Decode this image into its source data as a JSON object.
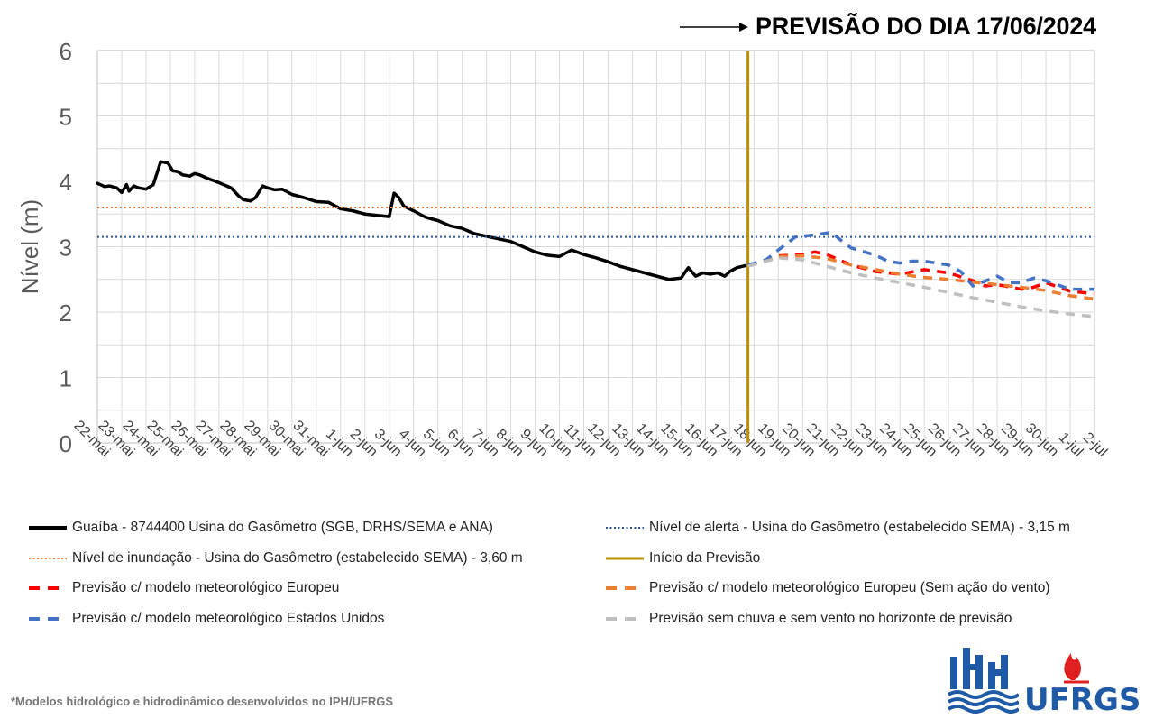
{
  "title": "PREVISÃO DO DIA 17/06/2024",
  "chart_data": {
    "type": "line",
    "ylabel": "Nível (m)",
    "xlabel": "",
    "ylim": [
      0,
      6
    ],
    "yticks": [
      0,
      1,
      2,
      3,
      4,
      5,
      6
    ],
    "grid": true,
    "categories": [
      "22-mai",
      "23-mai",
      "24-mai",
      "25-mai",
      "26-mai",
      "27-mai",
      "28-mai",
      "29-mai",
      "30-mai",
      "31-mai",
      "1-jun",
      "2-jun",
      "3-jun",
      "4-jun",
      "5-jun",
      "6-jun",
      "7-jun",
      "8-jun",
      "9-jun",
      "10-jun",
      "11-jun",
      "12-jun",
      "13-jun",
      "14-jun",
      "15-jun",
      "16-jun",
      "17-jun",
      "18-jun",
      "19-jun",
      "20-jun",
      "21-jun",
      "22-jun",
      "23-jun",
      "24-jun",
      "25-jun",
      "26-jun",
      "27-jun",
      "28-jun",
      "29-jun",
      "30-jun",
      "1-jul",
      "2-jul"
    ],
    "forecast_start": 26.75,
    "series": [
      {
        "name": "Guaíba - 8744400 Usina do Gasômetro (SGB, DRHS/SEMA e ANA)",
        "color": "#000000",
        "style": "solid",
        "x": [
          0,
          0.3,
          0.5,
          0.8,
          1.0,
          1.2,
          1.3,
          1.5,
          1.7,
          2.0,
          2.3,
          2.6,
          2.9,
          3.0,
          3.1,
          3.3,
          3.5,
          3.8,
          4.0,
          4.2,
          4.5,
          5.0,
          5.5,
          5.8,
          6.0,
          6.3,
          6.5,
          6.8,
          7.0,
          7.3,
          7.6,
          8.0,
          8.5,
          9.0,
          9.5,
          10.0,
          10.5,
          11.0,
          11.5,
          12.0,
          12.2,
          12.4,
          12.6,
          13.0,
          13.5,
          14.0,
          14.5,
          15.0,
          15.5,
          16.0,
          16.5,
          17.0,
          17.5,
          18.0,
          18.5,
          19.0,
          19.5,
          20.0,
          20.3,
          20.5,
          21.0,
          21.5,
          22.0,
          22.5,
          23.0,
          23.5,
          24.0,
          24.3,
          24.6,
          24.9,
          25.2,
          25.5,
          25.8,
          26.0,
          26.3,
          26.75
        ],
        "y": [
          3.97,
          3.92,
          3.93,
          3.9,
          3.83,
          3.95,
          3.85,
          3.93,
          3.9,
          3.88,
          3.95,
          4.3,
          4.28,
          4.22,
          4.16,
          4.15,
          4.1,
          4.08,
          4.12,
          4.1,
          4.05,
          3.98,
          3.9,
          3.78,
          3.72,
          3.7,
          3.75,
          3.93,
          3.9,
          3.87,
          3.88,
          3.8,
          3.75,
          3.69,
          3.68,
          3.58,
          3.55,
          3.5,
          3.48,
          3.46,
          3.82,
          3.75,
          3.62,
          3.55,
          3.45,
          3.4,
          3.32,
          3.28,
          3.2,
          3.16,
          3.12,
          3.08,
          3.0,
          2.92,
          2.87,
          2.85,
          2.95,
          2.88,
          2.85,
          2.83,
          2.77,
          2.7,
          2.65,
          2.6,
          2.55,
          2.5,
          2.52,
          2.68,
          2.55,
          2.6,
          2.58,
          2.6,
          2.55,
          2.62,
          2.68,
          2.72
        ]
      },
      {
        "name": "Nível de alerta - Usina do Gasômetro (estabelecido SEMA) - 3,15 m",
        "color": "#2f5597",
        "style": "dotted",
        "x": [
          0,
          41
        ],
        "y": [
          3.15,
          3.15
        ]
      },
      {
        "name": "Nível de inundação - Usina do Gasômetro (estabelecido SEMA) - 3,60 m",
        "color": "#ed7d31",
        "style": "dotted",
        "x": [
          0,
          41
        ],
        "y": [
          3.6,
          3.6
        ]
      },
      {
        "name": "Início da Previsão",
        "color": "#bf9000",
        "style": "vline"
      },
      {
        "name": "Previsão c/ modelo meteorológico Europeu",
        "color": "#ff0000",
        "style": "dashed",
        "x": [
          26.75,
          27.5,
          28.0,
          29.0,
          29.5,
          30.0,
          31.0,
          32.0,
          33.0,
          34.0,
          35.0,
          36.0,
          36.5,
          37.0,
          38.0,
          38.5,
          39.0,
          40.0,
          41.0
        ],
        "y": [
          2.72,
          2.78,
          2.86,
          2.88,
          2.92,
          2.88,
          2.72,
          2.62,
          2.58,
          2.65,
          2.6,
          2.48,
          2.4,
          2.42,
          2.35,
          2.38,
          2.45,
          2.32,
          2.28
        ]
      },
      {
        "name": "Previsão c/ modelo meteorológico Europeu (Sem ação do vento)",
        "color": "#ed7d31",
        "style": "dashed",
        "x": [
          26.75,
          27.5,
          28.0,
          29.0,
          30.0,
          31.0,
          32.0,
          33.0,
          34.0,
          35.0,
          36.0,
          37.0,
          38.0,
          39.0,
          40.0,
          41.0
        ],
        "y": [
          2.72,
          2.78,
          2.85,
          2.86,
          2.82,
          2.72,
          2.65,
          2.58,
          2.53,
          2.5,
          2.46,
          2.42,
          2.38,
          2.33,
          2.25,
          2.2
        ]
      },
      {
        "name": "Previsão c/ modelo meteorológico Estados Unidos",
        "color": "#4472c4",
        "style": "dashed",
        "x": [
          26.75,
          27.5,
          28.0,
          28.7,
          29.5,
          30.2,
          30.5,
          31.0,
          32.0,
          32.5,
          33.0,
          33.5,
          34.0,
          35.0,
          35.5,
          36.0,
          37.0,
          37.5,
          38.0,
          38.5,
          39.0,
          40.0,
          41.0
        ],
        "y": [
          2.72,
          2.8,
          2.95,
          3.15,
          3.18,
          3.22,
          3.12,
          2.98,
          2.87,
          2.78,
          2.75,
          2.78,
          2.78,
          2.72,
          2.62,
          2.4,
          2.55,
          2.45,
          2.45,
          2.52,
          2.48,
          2.35,
          2.35
        ]
      },
      {
        "name": "Previsão sem chuva e sem vento no horizonte de previsão",
        "color": "#bfbfbf",
        "style": "dashed",
        "x": [
          26.75,
          27.5,
          28.0,
          29.0,
          30.0,
          31.0,
          32.0,
          33.0,
          34.0,
          35.0,
          36.0,
          37.0,
          38.0,
          39.0,
          40.0,
          41.0
        ],
        "y": [
          2.7,
          2.78,
          2.83,
          2.8,
          2.7,
          2.6,
          2.52,
          2.45,
          2.38,
          2.3,
          2.22,
          2.15,
          2.08,
          2.02,
          1.97,
          1.93
        ]
      }
    ]
  },
  "footnote": "*Modelos hidrológico e hidrodinâmico desenvolvidos no IPH/UFRGS",
  "logos": {
    "iph": "IPH",
    "ufrgs": "UFRGS"
  }
}
